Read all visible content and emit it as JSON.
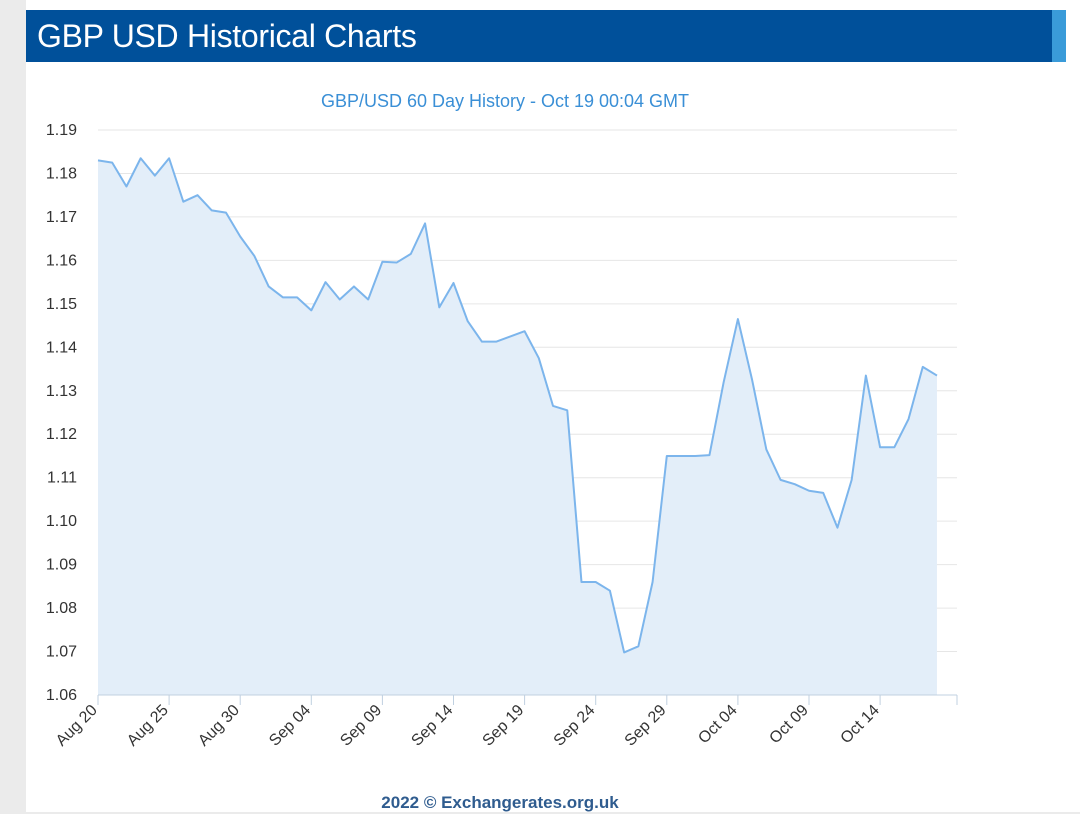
{
  "header": {
    "title": "GBP USD Historical Charts",
    "background_color": "#00509a",
    "accent_color": "#3a9bd9"
  },
  "chart_data": {
    "type": "area",
    "title": "GBP/USD 60 Day History - Oct 19 00:04 GMT",
    "xlabel": "",
    "ylabel": "",
    "ylim": [
      1.06,
      1.19
    ],
    "yticks": [
      "1.19",
      "1.18",
      "1.17",
      "1.16",
      "1.15",
      "1.14",
      "1.13",
      "1.12",
      "1.11",
      "1.10",
      "1.09",
      "1.08",
      "1.07",
      "1.06"
    ],
    "xticks": [
      "Aug 20",
      "Aug 25",
      "Aug 30",
      "Sep 04",
      "Sep 09",
      "Sep 14",
      "Sep 19",
      "Sep 24",
      "Sep 29",
      "Oct 04",
      "Oct 09",
      "Oct 14"
    ],
    "grid": true,
    "line_color": "#7cb5ec",
    "fill_color": "#e3eef9",
    "title_color": "#3a8fd6",
    "series": [
      {
        "x": [
          "Aug 20",
          "Aug 21",
          "Aug 22",
          "Aug 23",
          "Aug 24",
          "Aug 25",
          "Aug 26",
          "Aug 27",
          "Aug 28",
          "Aug 29",
          "Aug 30",
          "Aug 31",
          "Sep 01",
          "Sep 02",
          "Sep 03",
          "Sep 04",
          "Sep 05",
          "Sep 06",
          "Sep 07",
          "Sep 08",
          "Sep 09",
          "Sep 10",
          "Sep 11",
          "Sep 12",
          "Sep 13",
          "Sep 14",
          "Sep 15",
          "Sep 16",
          "Sep 17",
          "Sep 18",
          "Sep 19",
          "Sep 20",
          "Sep 21",
          "Sep 22",
          "Sep 23",
          "Sep 24",
          "Sep 25",
          "Sep 26",
          "Sep 27",
          "Sep 28",
          "Sep 29",
          "Sep 30",
          "Oct 01",
          "Oct 02",
          "Oct 03",
          "Oct 04",
          "Oct 05",
          "Oct 06",
          "Oct 07",
          "Oct 08",
          "Oct 09",
          "Oct 10",
          "Oct 11",
          "Oct 12",
          "Oct 13",
          "Oct 14",
          "Oct 15",
          "Oct 16",
          "Oct 17",
          "Oct 18"
        ],
        "values": [
          1.183,
          1.1825,
          1.177,
          1.1835,
          1.1795,
          1.1835,
          1.1735,
          1.175,
          1.1715,
          1.171,
          1.1655,
          1.161,
          1.154,
          1.1515,
          1.1515,
          1.1485,
          1.155,
          1.151,
          1.154,
          1.151,
          1.1597,
          1.1595,
          1.1615,
          1.1685,
          1.1492,
          1.1548,
          1.146,
          1.1413,
          1.1413,
          1.1425,
          1.1437,
          1.1375,
          1.1265,
          1.1255,
          1.086,
          1.086,
          1.084,
          1.0698,
          1.0712,
          1.086,
          1.115,
          1.115,
          1.115,
          1.1152,
          1.132,
          1.1465,
          1.1325,
          1.1165,
          1.1095,
          1.1085,
          1.107,
          1.1065,
          1.0985,
          1.1095,
          1.1335,
          1.117,
          1.117,
          1.1235,
          1.1355,
          1.1335
        ]
      }
    ]
  },
  "footer": {
    "text": "2022 © Exchangerates.org.uk"
  }
}
